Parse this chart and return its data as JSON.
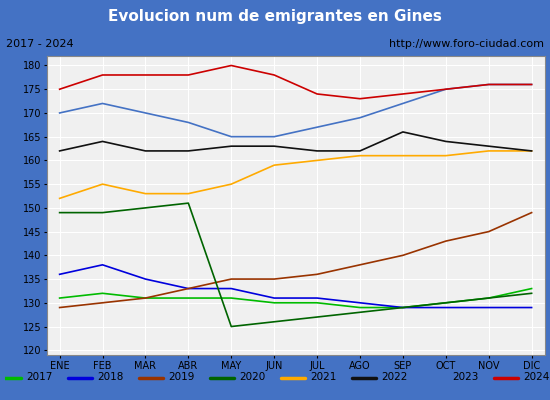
{
  "title": "Evolucion num de emigrantes en Gines",
  "title_color": "#ffffff",
  "title_bg": "#4472c4",
  "subtitle_left": "2017 - 2024",
  "subtitle_right": "http://www.foro-ciudad.com",
  "months": [
    "ENE",
    "FEB",
    "MAR",
    "ABR",
    "MAY",
    "JUN",
    "JUL",
    "AGO",
    "SEP",
    "OCT",
    "NOV",
    "DIC"
  ],
  "ylim": [
    119,
    182
  ],
  "yticks": [
    120,
    125,
    130,
    135,
    140,
    145,
    150,
    155,
    160,
    165,
    170,
    175,
    180
  ],
  "series": {
    "2017": {
      "color": "#00bb00",
      "data": [
        131,
        132,
        131,
        131,
        131,
        130,
        130,
        129,
        129,
        130,
        131,
        133
      ]
    },
    "2018": {
      "color": "#0000dd",
      "data": [
        136,
        138,
        135,
        133,
        133,
        131,
        131,
        130,
        129,
        129,
        129,
        129
      ]
    },
    "2019": {
      "color": "#993300",
      "data": [
        129,
        130,
        131,
        133,
        135,
        135,
        136,
        138,
        140,
        143,
        145,
        149
      ]
    },
    "2020": {
      "color": "#006400",
      "data": [
        149,
        149,
        150,
        151,
        125,
        126,
        127,
        128,
        129,
        130,
        131,
        132
      ]
    },
    "2021": {
      "color": "#ffaa00",
      "data": [
        152,
        155,
        153,
        153,
        155,
        159,
        160,
        161,
        161,
        161,
        162,
        162
      ]
    },
    "2022": {
      "color": "#111111",
      "data": [
        162,
        164,
        162,
        162,
        163,
        163,
        162,
        162,
        166,
        164,
        163,
        162
      ]
    },
    "2023": {
      "color": "#4472c4",
      "data": [
        170,
        172,
        170,
        168,
        165,
        165,
        167,
        169,
        172,
        175,
        176,
        176
      ]
    },
    "2024": {
      "color": "#cc0000",
      "data": [
        175,
        178,
        178,
        178,
        180,
        178,
        174,
        173,
        174,
        175,
        176,
        176
      ]
    }
  },
  "bg_plot": "#f0f0f0",
  "bg_outer": "#4472c4",
  "grid_color": "#ffffff"
}
